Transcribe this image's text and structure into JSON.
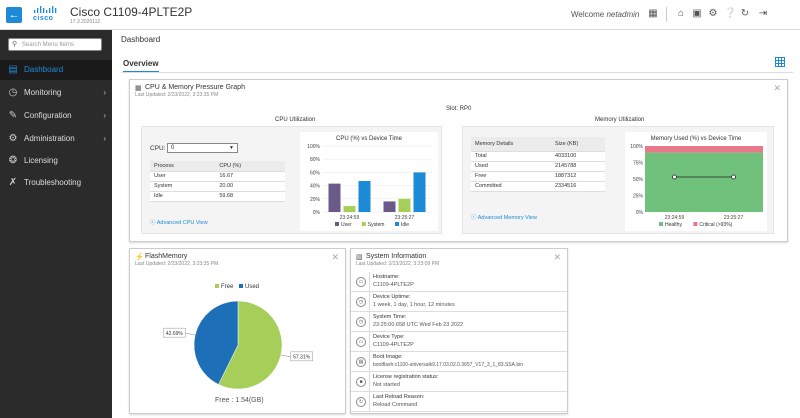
{
  "header": {
    "back_icon": "arrow-left-icon",
    "logo_text": "cisco",
    "title": "Cisco C1109-4PLTE2P",
    "subtitle": "17.3.2020112",
    "welcome_prefix": "Welcome",
    "username": "netadmin",
    "icons": [
      "network-icon",
      "home-icon",
      "save-icon",
      "gear-icon",
      "help-icon",
      "refresh-icon",
      "logout-icon"
    ]
  },
  "sidebar": {
    "search_placeholder": "Search Menu Items",
    "items": [
      {
        "label": "Dashboard",
        "icon": "dashboard-icon",
        "active": true
      },
      {
        "label": "Monitoring",
        "icon": "monitoring-icon",
        "chevron": true
      },
      {
        "label": "Configuration",
        "icon": "configuration-icon",
        "chevron": true
      },
      {
        "label": "Administration",
        "icon": "administration-icon",
        "chevron": true
      },
      {
        "label": "Licensing",
        "icon": "licensing-icon"
      },
      {
        "label": "Troubleshooting",
        "icon": "troubleshooting-icon"
      }
    ]
  },
  "main": {
    "page_title": "Dashboard",
    "tab": "Overview"
  },
  "cpu_mem_card": {
    "title": "CPU & Memory Pressure Graph",
    "updated": "Last Updated: 2/23/2022, 3:23:35 PM",
    "slot": "Slot: RP0",
    "cpu_title": "CPU Utilization",
    "mem_title": "Memory Utilization",
    "cpu_label": "CPU:",
    "cpu_select": "0",
    "cpu_table": {
      "headers": [
        "Process",
        "CPU (%)"
      ],
      "rows": [
        [
          "User",
          "16.67"
        ],
        [
          "System",
          "20.00"
        ],
        [
          "Idle",
          "59.68"
        ]
      ]
    },
    "cpu_link": "Advanced CPU View",
    "mem_table": {
      "headers": [
        "Memory Details",
        "Size (KB)"
      ],
      "rows": [
        [
          "Total",
          "4033100"
        ],
        [
          "Used",
          "2145788"
        ],
        [
          "Free",
          "1887312"
        ],
        [
          "Committed",
          "2334516"
        ]
      ]
    },
    "mem_link": "Advanced Memory View"
  },
  "flash_card": {
    "title": "FlashMemory",
    "updated": "Last Updated: 2/23/2022, 3:23:35 PM",
    "legend": [
      "Free",
      "Used"
    ],
    "free_text": "Free : 1.54(GB)"
  },
  "sysinfo_card": {
    "title": "System Information",
    "updated": "Last Updated: 2/23/2022, 3:23:09 PM",
    "rows": [
      {
        "key": "Hostname:",
        "value": "C1109-4PLTE2P",
        "icon": "host-icon"
      },
      {
        "key": "Device Uptime:",
        "value": "1 week, 1 day, 1 hour, 12 minutes",
        "icon": "uptime-icon"
      },
      {
        "key": "System Time:",
        "value": "23:25:00.658 UTC Wed Feb 23 2022",
        "icon": "clock-icon"
      },
      {
        "key": "Device Type:",
        "value": "C1109-4PLTE2P",
        "icon": "device-icon"
      },
      {
        "key": "Boot Image:",
        "value": "bootflash:c1100-universalk9.17.03.02.0.3657_V17_3_1_83.SSA.bin",
        "icon": "boot-icon"
      },
      {
        "key": "License registration status:",
        "value": "Not started",
        "icon": "license-icon"
      },
      {
        "key": "Last Reload Reason:",
        "value": "Reload Command",
        "icon": "reload-icon"
      }
    ]
  },
  "chart_data": [
    {
      "type": "bar",
      "title": "CPU (%) vs Device Time",
      "categories": [
        "23:24:59",
        "23:25:27"
      ],
      "series": [
        {
          "name": "User",
          "color": "#6a5a8a",
          "values": [
            43,
            16
          ]
        },
        {
          "name": "System",
          "color": "#a6cf5a",
          "values": [
            9,
            20
          ]
        },
        {
          "name": "Idle",
          "color": "#1d8ad8",
          "values": [
            47,
            60
          ]
        }
      ],
      "ylim": [
        0,
        100
      ],
      "yticks": [
        "0%",
        "20%",
        "40%",
        "60%",
        "80%",
        "100%"
      ]
    },
    {
      "type": "area",
      "title": "Memory Used (%) vs Device Time",
      "categories": [
        "23:24:59",
        "23:25:27"
      ],
      "series": [
        {
          "name": "Healthy",
          "color": "#6fc17b",
          "values": [
            90,
            90
          ]
        },
        {
          "name": "Critical (>93%)",
          "color": "#e7798a",
          "values": [
            100,
            100
          ]
        }
      ],
      "line_values": [
        53,
        53
      ],
      "ylim": [
        0,
        100
      ],
      "yticks": [
        "0%",
        "25%",
        "50%",
        "75%",
        "100%"
      ]
    },
    {
      "type": "pie",
      "title": "",
      "slices": [
        {
          "name": "Free",
          "value": 57.31,
          "label": "57.31%",
          "color": "#a6cf5a"
        },
        {
          "name": "Used",
          "value": 42.69,
          "label": "42.69%",
          "color": "#1d6fb8"
        }
      ]
    }
  ]
}
